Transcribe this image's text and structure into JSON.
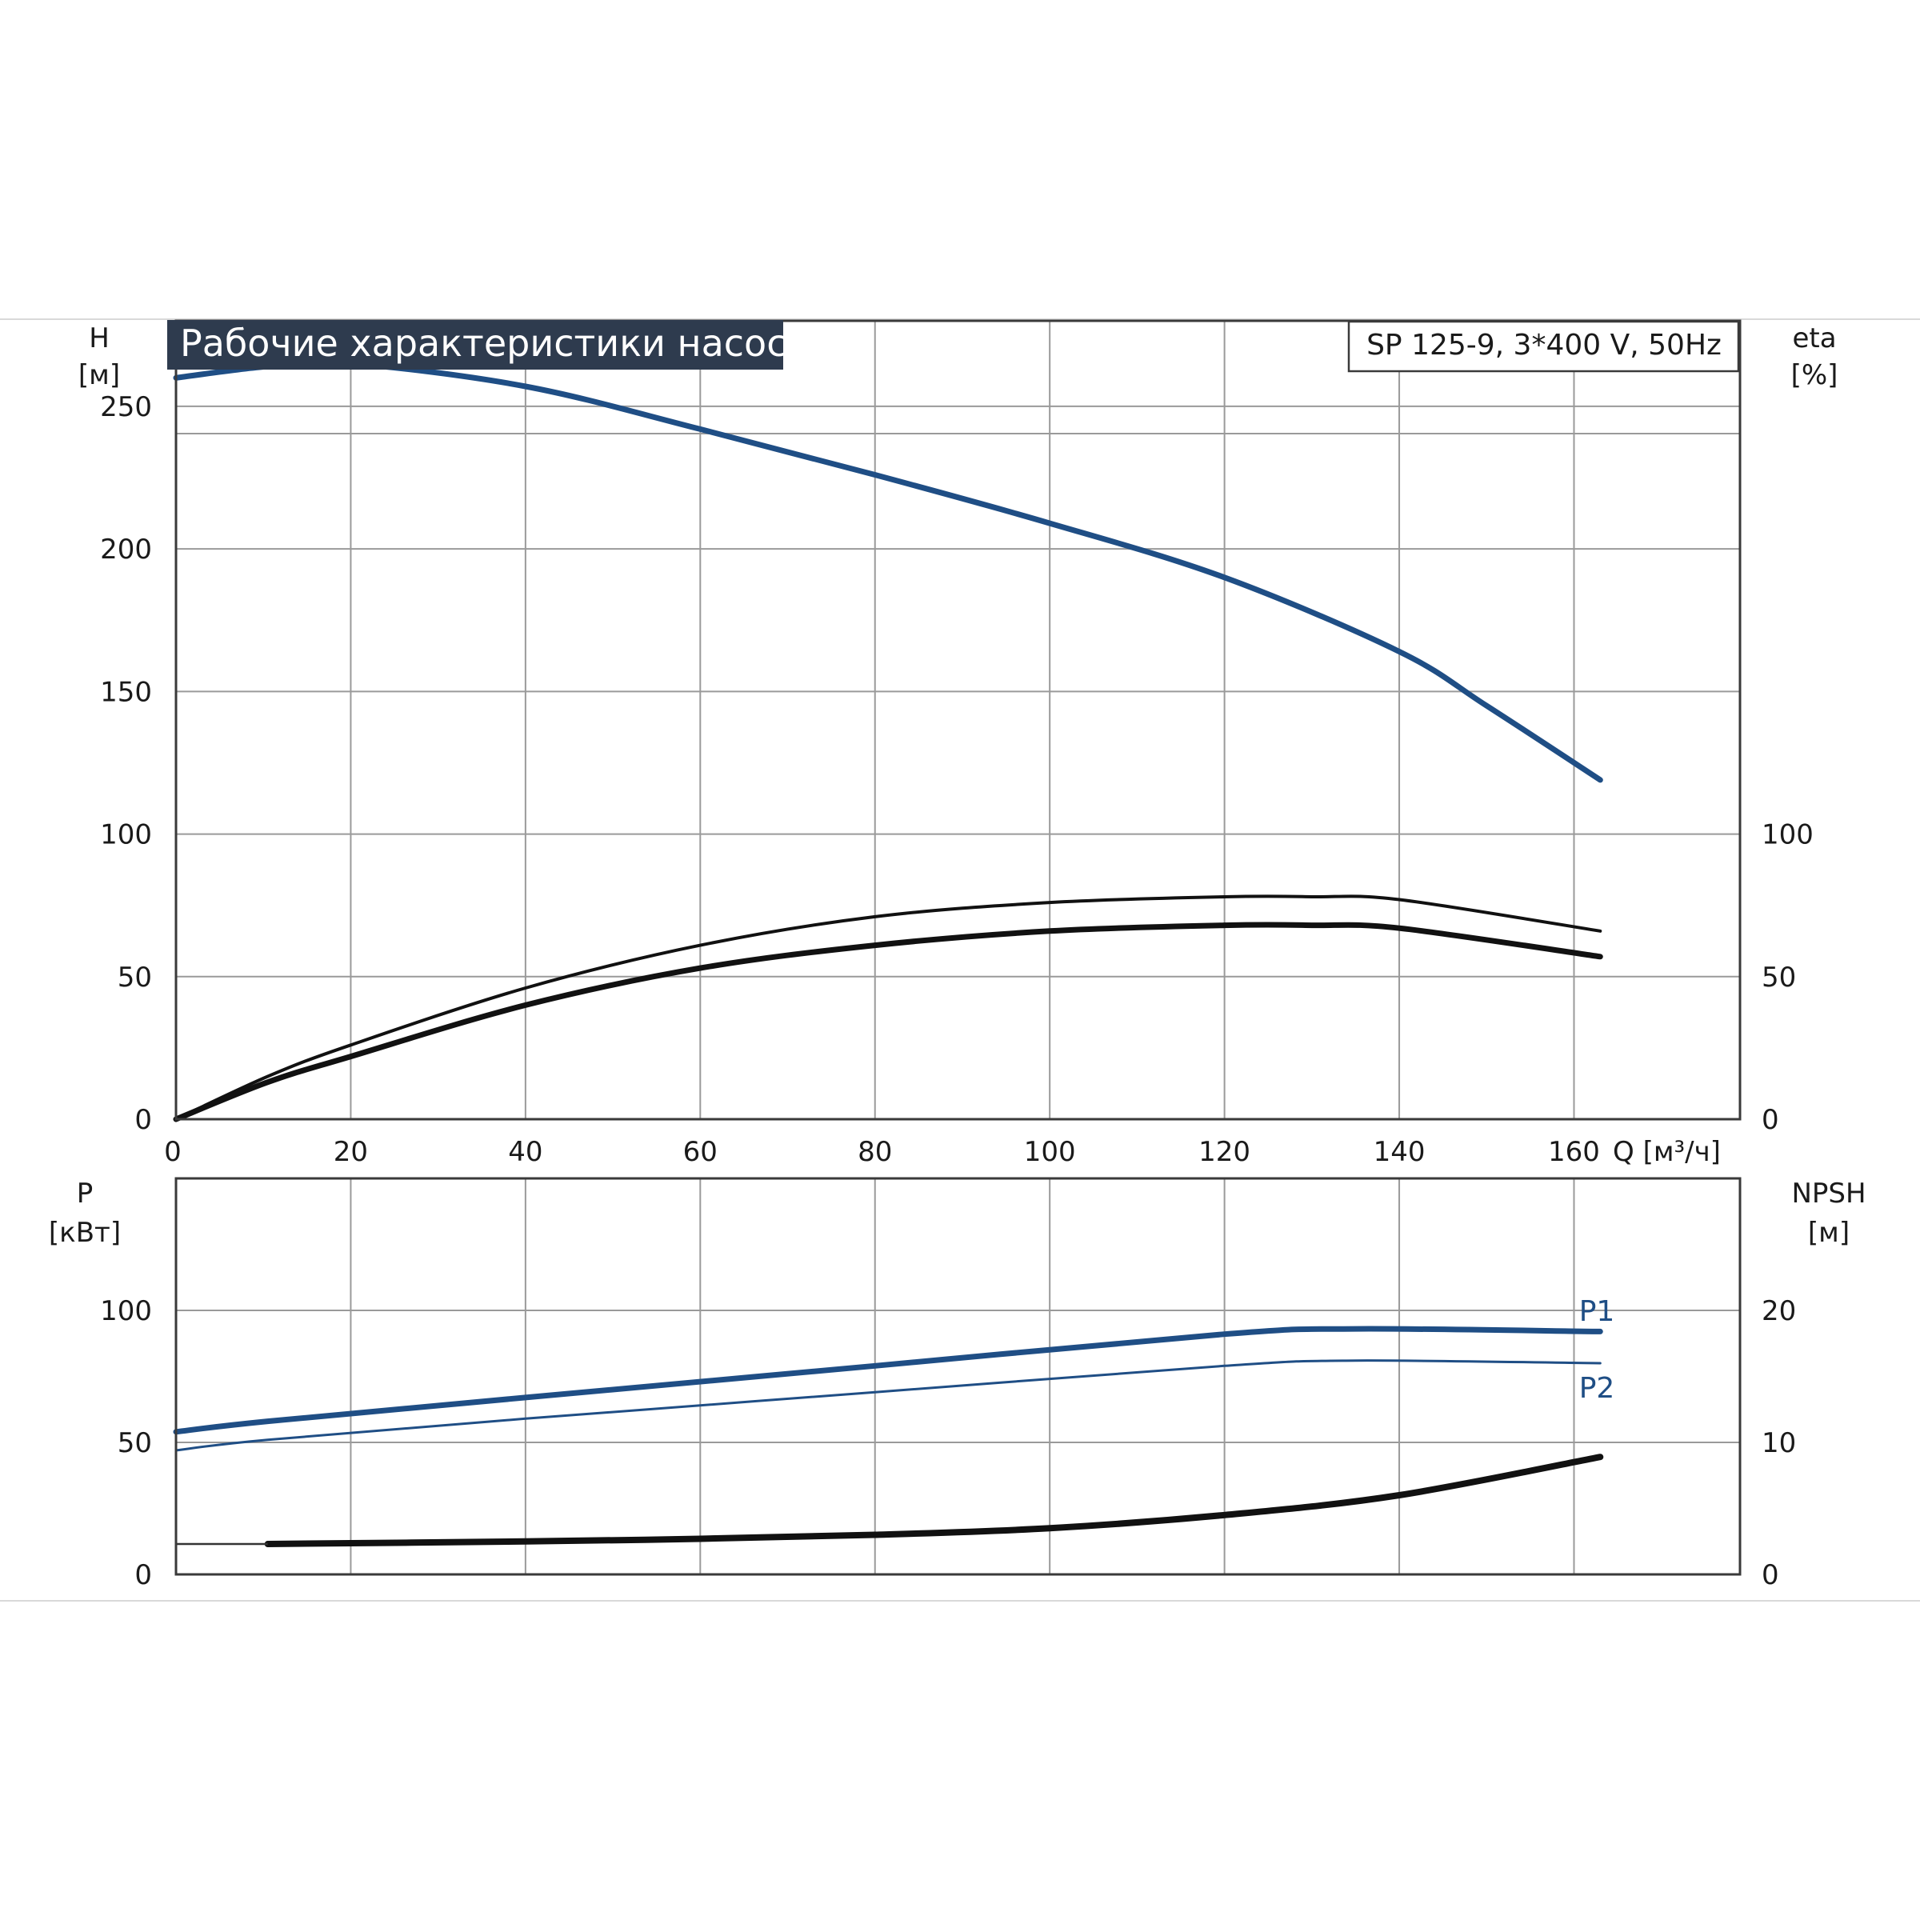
{
  "chart_data": {
    "type": "line",
    "title": "Рабочие характеристики насоса",
    "model": "SP 125-9, 3*400 V, 50Hz",
    "colors": {
      "blue": "#1f4e85",
      "black": "#111111",
      "title_bg": "#2e3b4e",
      "title_fg": "#ffffff"
    },
    "top": {
      "xlabel": "Q [м³/ч]",
      "ylabel_left": [
        "H",
        "[м]"
      ],
      "ylabel_right": [
        "eta",
        "[%]"
      ],
      "xlim": [
        0,
        179
      ],
      "ylim": [
        0,
        280
      ],
      "xticks": [
        0,
        20,
        40,
        60,
        80,
        100,
        120,
        140,
        160
      ],
      "xtick_labels": [
        "0",
        "20",
        "40",
        "60",
        "80",
        "100",
        "120",
        "140",
        "160"
      ],
      "yticks_left": [
        0,
        50,
        100,
        150,
        200,
        250
      ],
      "yticks_right": [
        0,
        50,
        100
      ],
      "grid": true,
      "series": [
        {
          "axis": "left",
          "color": "#1f4e85",
          "width": 7,
          "x": [
            0,
            10.5,
            20,
            40,
            60,
            80,
            100,
            120,
            140,
            150,
            163
          ],
          "y": [
            260,
            264,
            265,
            257,
            242,
            226,
            209,
            190,
            164,
            145,
            119
          ]
        },
        {
          "axis": "right",
          "color": "#111111",
          "width": 4,
          "x": [
            0,
            10.5,
            20,
            40,
            60,
            80,
            100,
            120,
            130,
            140,
            163
          ],
          "y": [
            0,
            15,
            26,
            46,
            61,
            71,
            76,
            78,
            78,
            77,
            66
          ]
        },
        {
          "axis": "right",
          "color": "#111111",
          "width": 7,
          "x": [
            0,
            10.5,
            20,
            40,
            60,
            80,
            100,
            120,
            130,
            140,
            163
          ],
          "y": [
            0,
            13,
            22,
            40,
            53,
            61,
            66,
            68,
            68,
            67,
            57
          ]
        }
      ]
    },
    "bottom": {
      "ylabel_left": [
        "P",
        "[кВт]"
      ],
      "ylabel_right": [
        "NPSH",
        "[м]"
      ],
      "xlim": [
        0,
        179
      ],
      "ylim": [
        0,
        150
      ],
      "yticks_left": [
        0,
        50,
        100
      ],
      "yticks_right": [
        0,
        10,
        20
      ],
      "grid": true,
      "series": [
        {
          "axis": "left",
          "name": "P1",
          "color": "#1f4e85",
          "width": 7,
          "x": [
            0,
            10.5,
            40,
            80,
            120,
            135,
            163
          ],
          "y": [
            54,
            58,
            67,
            79,
            91,
            93,
            92
          ]
        },
        {
          "axis": "left",
          "name": "P2",
          "color": "#1f4e85",
          "width": 3,
          "x": [
            0,
            10.5,
            40,
            80,
            120,
            135,
            163
          ],
          "y": [
            47,
            51,
            59,
            69,
            79,
            81,
            80
          ]
        },
        {
          "axis": "right",
          "color": "#111111",
          "width": 8,
          "x": [
            10.5,
            40,
            60,
            80,
            100,
            120,
            140,
            163
          ],
          "y": [
            2.3,
            2.5,
            2.7,
            3.0,
            3.5,
            4.5,
            6.0,
            8.9
          ]
        }
      ],
      "npsh_baseline": {
        "x": [
          0,
          10.5
        ],
        "y": 2.3
      }
    }
  }
}
